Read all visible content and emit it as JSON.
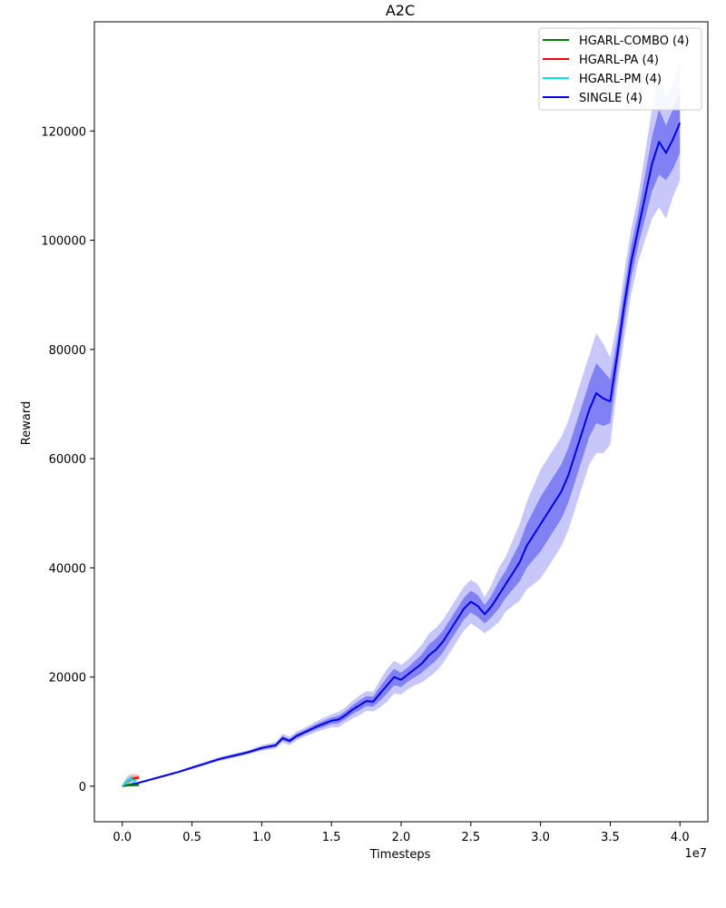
{
  "chart_data": {
    "type": "line",
    "title": "A2C",
    "xlabel": "Timesteps",
    "ylabel": "Reward",
    "x_offset_text": "1e7",
    "xlim": [
      -0.2,
      4.2
    ],
    "ylim": [
      -6500,
      140000
    ],
    "xticks": [
      0.0,
      0.5,
      1.0,
      1.5,
      2.0,
      2.5,
      3.0,
      3.5,
      4.0
    ],
    "xtick_labels": [
      "0.0",
      "0.5",
      "1.0",
      "1.5",
      "2.0",
      "2.5",
      "3.0",
      "3.5",
      "4.0"
    ],
    "yticks": [
      0,
      20000,
      40000,
      60000,
      80000,
      100000,
      120000
    ],
    "ytick_labels": [
      "0",
      "20000",
      "40000",
      "60000",
      "80000",
      "100000",
      "120000"
    ],
    "grid": false,
    "legend_position": "top-right",
    "series": [
      {
        "name": "HGARL-COMBO (4)",
        "color": "#008000",
        "x": [
          0.0,
          0.02,
          0.04,
          0.06,
          0.08,
          0.1,
          0.12
        ],
        "y": [
          0,
          80,
          120,
          150,
          180,
          200,
          220
        ],
        "band_outer": {
          "lo": [
            0,
            0,
            0,
            0,
            0,
            0,
            0
          ],
          "hi": [
            100,
            400,
            600,
            700,
            800,
            700,
            600
          ]
        },
        "band_inner": {
          "lo": [
            0,
            40,
            60,
            80,
            90,
            100,
            110
          ],
          "hi": [
            50,
            200,
            300,
            350,
            400,
            380,
            350
          ]
        }
      },
      {
        "name": "HGARL-PA (4)",
        "color": "#ff0000",
        "x": [
          0.0,
          0.02,
          0.04,
          0.06,
          0.08,
          0.1,
          0.12
        ],
        "y": [
          0,
          500,
          900,
          1200,
          1400,
          1500,
          1600
        ],
        "band_outer": {
          "lo": [
            0,
            200,
            500,
            700,
            900,
            1000,
            1100
          ],
          "hi": [
            200,
            1200,
            1800,
            2200,
            2300,
            2200,
            2100
          ]
        },
        "band_inner": {
          "lo": [
            0,
            350,
            700,
            950,
            1150,
            1250,
            1350
          ],
          "hi": [
            100,
            850,
            1350,
            1700,
            1850,
            1850,
            1850
          ]
        }
      },
      {
        "name": "HGARL-PM (4)",
        "color": "#00e5e5",
        "x": [
          0.0,
          0.02,
          0.04,
          0.06,
          0.08,
          0.1
        ],
        "y": [
          0,
          500,
          1000,
          1300,
          1100,
          900
        ],
        "band_outer": {
          "lo": [
            0,
            100,
            300,
            500,
            400,
            300
          ],
          "hi": [
            200,
            1200,
            2000,
            2200,
            1800,
            1500
          ]
        },
        "band_inner": {
          "lo": [
            0,
            300,
            650,
            900,
            750,
            600
          ],
          "hi": [
            100,
            850,
            1500,
            1750,
            1450,
            1200
          ]
        }
      },
      {
        "name": "SINGLE (4)",
        "color": "#0000e6",
        "x": [
          0.0,
          0.1,
          0.2,
          0.3,
          0.4,
          0.5,
          0.6,
          0.7,
          0.8,
          0.9,
          1.0,
          1.1,
          1.15,
          1.2,
          1.25,
          1.3,
          1.4,
          1.5,
          1.55,
          1.6,
          1.65,
          1.7,
          1.75,
          1.8,
          1.85,
          1.9,
          1.95,
          2.0,
          2.05,
          2.1,
          2.15,
          2.2,
          2.25,
          2.3,
          2.35,
          2.4,
          2.45,
          2.5,
          2.55,
          2.6,
          2.65,
          2.7,
          2.75,
          2.8,
          2.85,
          2.9,
          2.95,
          3.0,
          3.05,
          3.1,
          3.15,
          3.2,
          3.25,
          3.3,
          3.35,
          3.4,
          3.45,
          3.5,
          3.55,
          3.6,
          3.65,
          3.7,
          3.75,
          3.8,
          3.85,
          3.9,
          3.95,
          4.0
        ],
        "y": [
          0,
          500,
          1200,
          1900,
          2600,
          3400,
          4200,
          5000,
          5600,
          6200,
          7000,
          7500,
          8800,
          8300,
          9200,
          9800,
          11000,
          12000,
          12200,
          13000,
          14000,
          14800,
          15600,
          15500,
          17000,
          18500,
          20000,
          19500,
          20500,
          21500,
          22500,
          24000,
          25000,
          26500,
          28500,
          30500,
          32500,
          33800,
          33000,
          31500,
          33000,
          35000,
          37000,
          39000,
          41000,
          44000,
          46000,
          48000,
          50000,
          52000,
          54000,
          57000,
          61000,
          65000,
          69000,
          72000,
          71000,
          70500,
          79000,
          88000,
          96000,
          102000,
          108000,
          114000,
          118000,
          116000,
          118500,
          121500
        ],
        "band_inner": {
          "lo": [
            0,
            450,
            1100,
            1800,
            2500,
            3250,
            4050,
            4800,
            5400,
            6000,
            6750,
            7200,
            8400,
            7900,
            8800,
            9400,
            10500,
            11400,
            11500,
            12300,
            13200,
            13900,
            14700,
            14600,
            15700,
            17000,
            18500,
            18200,
            19200,
            20000,
            20800,
            22000,
            23000,
            24500,
            26500,
            28500,
            30500,
            31800,
            31000,
            29800,
            31000,
            32500,
            34500,
            36000,
            37500,
            40000,
            41500,
            43000,
            45000,
            47000,
            49000,
            52000,
            56000,
            60000,
            64000,
            66500,
            66000,
            66500,
            76000,
            85000,
            93000,
            99000,
            104000,
            109000,
            112000,
            111000,
            113000,
            116000
          ],
          "hi": [
            0,
            550,
            1300,
            2000,
            2700,
            3550,
            4350,
            5200,
            5800,
            6400,
            7250,
            7800,
            9200,
            8700,
            9600,
            10200,
            11500,
            12600,
            12900,
            13700,
            14800,
            15700,
            16500,
            16400,
            18300,
            20000,
            21500,
            20800,
            21800,
            23000,
            24200,
            26000,
            27000,
            28500,
            30500,
            32500,
            34500,
            35800,
            35000,
            33200,
            35000,
            37500,
            39500,
            42000,
            44500,
            48000,
            50500,
            53000,
            55000,
            57000,
            59000,
            62000,
            66000,
            70000,
            74000,
            77500,
            76000,
            74500,
            82000,
            91000,
            99000,
            105000,
            112000,
            119000,
            124000,
            121000,
            124000,
            127000
          ]
        },
        "band_outer": {
          "lo": [
            0,
            400,
            1000,
            1700,
            2400,
            3100,
            3900,
            4600,
            5200,
            5800,
            6500,
            6900,
            8000,
            7500,
            8400,
            9000,
            10000,
            10800,
            10800,
            11600,
            12400,
            13000,
            13800,
            13700,
            14500,
            15500,
            17000,
            16800,
            17800,
            18500,
            19000,
            20000,
            21000,
            22500,
            24500,
            26500,
            28500,
            29800,
            29000,
            28000,
            29000,
            30000,
            32000,
            33000,
            34000,
            36000,
            37000,
            38000,
            40000,
            42000,
            44000,
            47000,
            51000,
            55000,
            59000,
            61000,
            61000,
            62500,
            73000,
            82000,
            90000,
            96000,
            100000,
            104000,
            106000,
            104000,
            108000,
            111000
          ],
          "hi": [
            0,
            600,
            1400,
            2100,
            2800,
            3700,
            4500,
            5400,
            6000,
            6600,
            7500,
            8100,
            9600,
            9100,
            10000,
            10600,
            12000,
            13200,
            13600,
            14400,
            15600,
            16600,
            17400,
            17300,
            19500,
            21500,
            23000,
            22200,
            23200,
            24500,
            26000,
            28000,
            29000,
            30500,
            32500,
            34500,
            36500,
            37800,
            37000,
            34600,
            37000,
            40000,
            42000,
            45000,
            48000,
            52000,
            55000,
            58000,
            60000,
            62000,
            64000,
            67000,
            71000,
            75000,
            79000,
            83000,
            81000,
            78500,
            85000,
            94000,
            102000,
            108000,
            116000,
            124000,
            130000,
            126000,
            129000,
            133000
          ]
        }
      }
    ]
  }
}
